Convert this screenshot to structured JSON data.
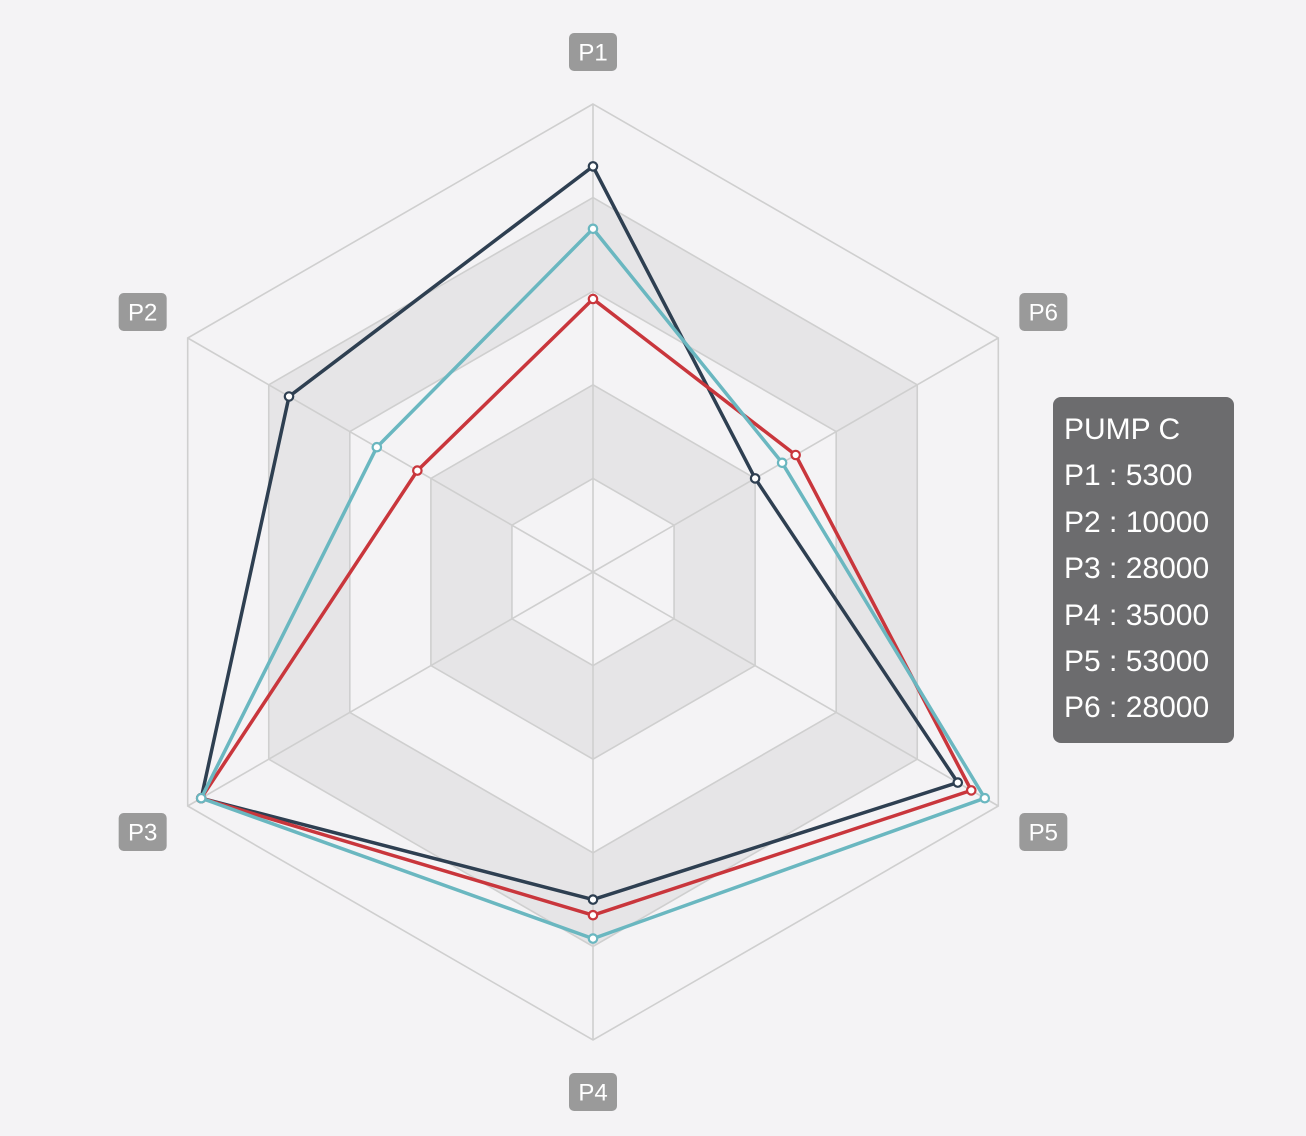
{
  "chart_data": {
    "type": "radar",
    "indicators": [
      "P1",
      "P2",
      "P3",
      "P4",
      "P5",
      "P6"
    ],
    "max": 60000,
    "split_number": 5,
    "split_area": true,
    "series": [
      {
        "color": "#2e3f51",
        "values": [
          52000,
          45000,
          58000,
          42000,
          54000,
          24000
        ]
      },
      {
        "color": "#c9363c",
        "values": [
          35000,
          26000,
          58000,
          44000,
          56000,
          30000
        ]
      },
      {
        "color": "#6ab7c0",
        "values": [
          44000,
          32000,
          58000,
          47000,
          58000,
          28000
        ]
      }
    ],
    "tooltip": {
      "title": "PUMP C",
      "lines": [
        {
          "label": "P1",
          "value": "5300"
        },
        {
          "label": "P2",
          "value": "10000"
        },
        {
          "label": "P3",
          "value": "28000"
        },
        {
          "label": "P4",
          "value": "35000"
        },
        {
          "label": "P5",
          "value": "53000"
        },
        {
          "label": "P6",
          "value": "28000"
        }
      ]
    },
    "colors": {
      "background": "#f4f3f5",
      "grid_line": "#cfcfcf",
      "split_area_light": "#f4f3f5",
      "split_area_dark": "#e6e5e7",
      "label_bg": "#9a9a9a",
      "tooltip_bg": "#646466"
    }
  }
}
